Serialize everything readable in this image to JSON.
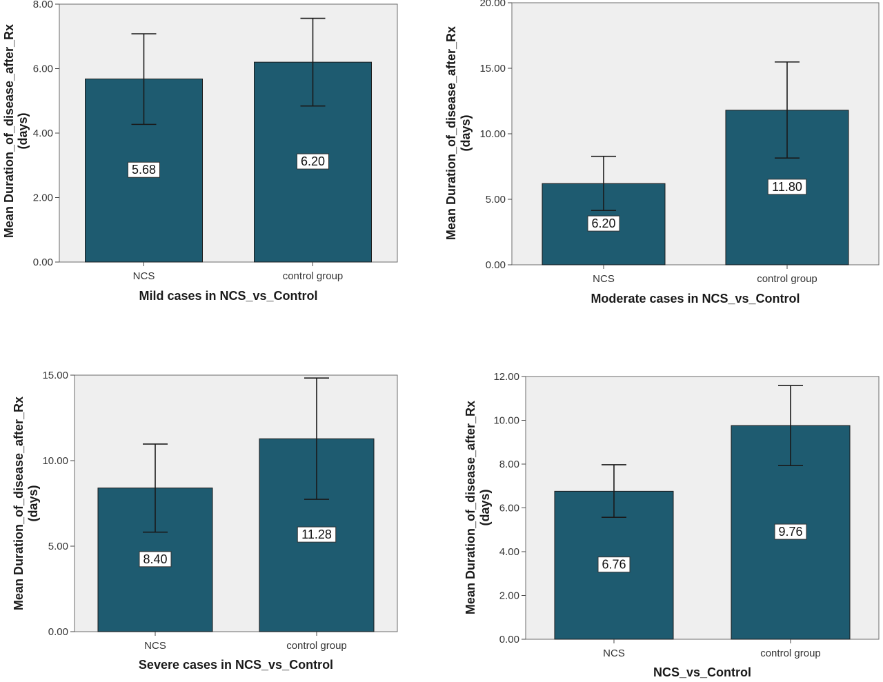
{
  "chart_data": [
    {
      "type": "bar",
      "categories": [
        "NCS",
        "control group"
      ],
      "values": [
        5.68,
        6.2
      ],
      "value_labels": [
        "5.68",
        "6.20"
      ],
      "error_bars": [
        [
          4.27,
          7.08
        ],
        [
          4.84,
          7.56
        ]
      ],
      "xlabel": "Mild cases in NCS_vs_Control",
      "ylabel_lines": [
        "Mean Duration_of_disease_after_Rx",
        "(days)"
      ],
      "ylim": [
        0,
        8.0
      ],
      "yticks": [
        "0.00",
        "2.00",
        "4.00",
        "6.00",
        "8.00"
      ],
      "grid": false,
      "colors": {
        "bar": "#1e5b70",
        "background": "#efefef"
      }
    },
    {
      "type": "bar",
      "categories": [
        "NCS",
        "control group"
      ],
      "values": [
        6.2,
        11.8
      ],
      "value_labels": [
        "6.20",
        "11.80"
      ],
      "error_bars": [
        [
          4.15,
          8.28
        ],
        [
          8.15,
          15.48
        ]
      ],
      "xlabel": "Moderate cases in NCS_vs_Control",
      "ylabel_lines": [
        "Mean Duration_of_disease_after_Rx",
        "(days)"
      ],
      "ylim": [
        0,
        20.0
      ],
      "yticks": [
        "0.00",
        "5.00",
        "10.00",
        "15.00",
        "20.00"
      ],
      "grid": false,
      "colors": {
        "bar": "#1e5b70",
        "background": "#efefef"
      }
    },
    {
      "type": "bar",
      "categories": [
        "NCS",
        "control group"
      ],
      "values": [
        8.4,
        11.28
      ],
      "value_labels": [
        "8.40",
        "11.28"
      ],
      "error_bars": [
        [
          5.82,
          10.97
        ],
        [
          7.74,
          14.83
        ]
      ],
      "xlabel": "Severe cases in NCS_vs_Control",
      "ylabel_lines": [
        "Mean Duration_of_disease_after_Rx",
        "(days)"
      ],
      "ylim": [
        0,
        15.0
      ],
      "yticks": [
        "0.00",
        "5.00",
        "10.00",
        "15.00"
      ],
      "grid": false,
      "colors": {
        "bar": "#1e5b70",
        "background": "#efefef"
      }
    },
    {
      "type": "bar",
      "categories": [
        "NCS",
        "control group"
      ],
      "values": [
        6.76,
        9.76
      ],
      "value_labels": [
        "6.76",
        "9.76"
      ],
      "error_bars": [
        [
          5.57,
          7.97
        ],
        [
          7.93,
          11.59
        ]
      ],
      "xlabel": "NCS_vs_Control",
      "ylabel_lines": [
        "Mean Duration_of_disease_after_Rx",
        "(days)"
      ],
      "ylim": [
        0,
        12.0
      ],
      "yticks": [
        "0.00",
        "2.00",
        "4.00",
        "6.00",
        "8.00",
        "10.00",
        "12.00"
      ],
      "grid": false,
      "colors": {
        "bar": "#1e5b70",
        "background": "#efefef"
      }
    }
  ]
}
